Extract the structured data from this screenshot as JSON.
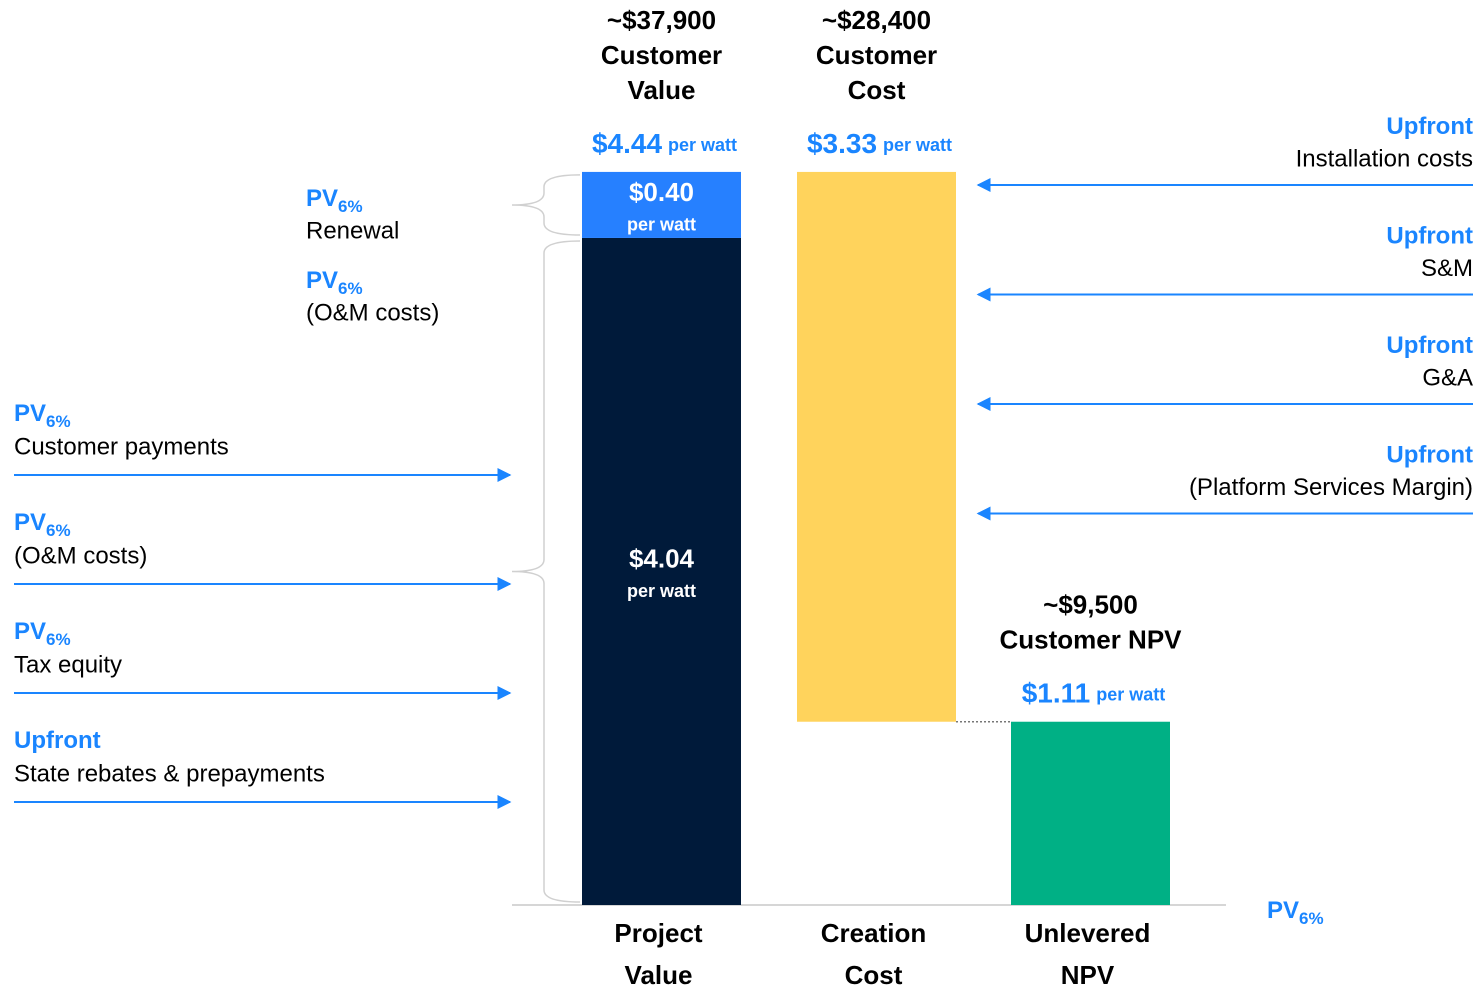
{
  "chart_data": {
    "type": "waterfall",
    "unit": "per watt",
    "ylim": [
      0,
      4.6
    ],
    "axis_label": {
      "tag": "PV",
      "sub": "6%"
    },
    "bars": [
      {
        "category": [
          "Project",
          "Value"
        ],
        "header": [
          "~$37,900",
          "Customer",
          "Value"
        ],
        "total": 4.44,
        "total_label": "$4.44",
        "measure": "absolute",
        "segments": [
          {
            "value": 4.04,
            "label": "$4.04",
            "color": "#001a3a"
          },
          {
            "value": 0.4,
            "label": "$0.40",
            "color": "#2680ff"
          }
        ]
      },
      {
        "category": [
          "Creation",
          "Cost"
        ],
        "header": [
          "~$28,400",
          "Customer",
          "Cost"
        ],
        "value": 3.33,
        "label": "$3.33",
        "measure": "decrease",
        "color": "#ffd35c"
      },
      {
        "category": [
          "Unlevered",
          "NPV"
        ],
        "header": [
          "~$9,500",
          "Customer NPV"
        ],
        "value": 1.11,
        "label": "$1.11",
        "measure": "absolute",
        "color": "#00b085"
      }
    ],
    "brace_annotations": [
      {
        "tag": "PV",
        "sub": "6%",
        "text": "Renewal"
      },
      {
        "tag": "PV",
        "sub": "6%",
        "text": "(O&M costs)"
      }
    ],
    "left_annotations": [
      {
        "tag": "PV",
        "sub": "6%",
        "text": "Customer payments"
      },
      {
        "tag": "PV",
        "sub": "6%",
        "text": "(O&M costs)"
      },
      {
        "tag": "PV",
        "sub": "6%",
        "text": "Tax equity"
      },
      {
        "tag": "Upfront",
        "text": "State rebates & prepayments"
      }
    ],
    "right_annotations": [
      {
        "tag": "Upfront",
        "text": "Installation costs"
      },
      {
        "tag": "Upfront",
        "text": "S&M"
      },
      {
        "tag": "Upfront",
        "text": "G&A"
      },
      {
        "tag": "Upfront",
        "text": "(Platform Services Margin)"
      }
    ]
  }
}
